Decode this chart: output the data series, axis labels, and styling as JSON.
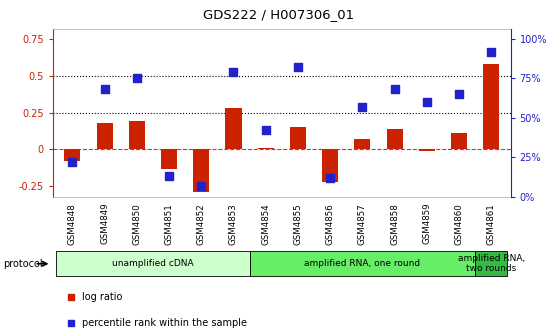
{
  "title": "GDS222 / H007306_01",
  "samples": [
    "GSM4848",
    "GSM4849",
    "GSM4850",
    "GSM4851",
    "GSM4852",
    "GSM4853",
    "GSM4854",
    "GSM4855",
    "GSM4856",
    "GSM4857",
    "GSM4858",
    "GSM4859",
    "GSM4860",
    "GSM4861"
  ],
  "log_ratio": [
    -0.08,
    0.18,
    0.19,
    -0.13,
    -0.29,
    0.28,
    0.01,
    0.15,
    -0.22,
    0.07,
    0.14,
    -0.01,
    0.11,
    0.58
  ],
  "percentile": [
    0.22,
    0.68,
    0.75,
    0.13,
    0.07,
    0.79,
    0.42,
    0.82,
    0.12,
    0.57,
    0.68,
    0.6,
    0.65,
    0.92
  ],
  "bar_color": "#cc2200",
  "dot_color": "#2222cc",
  "hline_color": "#cc2200",
  "dotted_line_color": "#000000",
  "left_ylim": [
    -0.32,
    0.82
  ],
  "right_ylim": [
    0,
    1.066
  ],
  "left_yticks": [
    -0.25,
    0.0,
    0.25,
    0.5,
    0.75
  ],
  "left_yticklabels": [
    "-0.25",
    "0",
    "0.25",
    "0.5",
    "0.75"
  ],
  "right_yticks": [
    0,
    0.25,
    0.5,
    0.75,
    1.0
  ],
  "right_yticklabels": [
    "0%",
    "25%",
    "50%",
    "75%",
    "100%"
  ],
  "protocol_groups": [
    {
      "label": "unamplified cDNA",
      "start": 0,
      "end": 5,
      "color": "#ccffcc"
    },
    {
      "label": "amplified RNA, one round",
      "start": 6,
      "end": 12,
      "color": "#66ee66"
    },
    {
      "label": "amplified RNA,\ntwo rounds",
      "start": 13,
      "end": 13,
      "color": "#33bb44"
    }
  ],
  "legend_items": [
    {
      "label": "log ratio",
      "color": "#cc2200"
    },
    {
      "label": "percentile rank within the sample",
      "color": "#2222cc"
    }
  ],
  "bar_width": 0.5,
  "dot_size": 28,
  "background_color": "#ffffff"
}
